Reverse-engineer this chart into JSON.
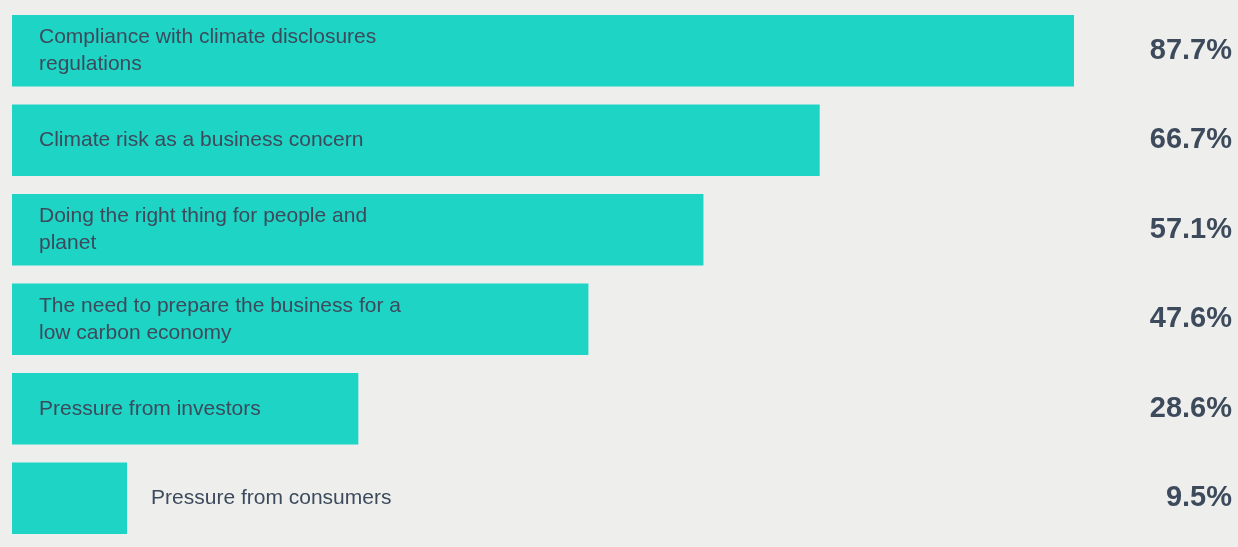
{
  "chart_data": {
    "type": "bar",
    "orientation": "horizontal",
    "categories": [
      "Compliance with climate disclosures regulations",
      "Climate risk as a business concern",
      "Doing the right thing for people and planet",
      "The need to prepare the business for a low carbon economy",
      "Pressure from investors",
      "Pressure from consumers"
    ],
    "values": [
      87.7,
      66.7,
      57.1,
      47.6,
      28.6,
      9.5
    ],
    "value_labels": [
      "87.7%",
      "66.7%",
      "57.1%",
      "47.6%",
      "28.6%",
      "9.5%"
    ],
    "color": "#1dd4c5"
  }
}
